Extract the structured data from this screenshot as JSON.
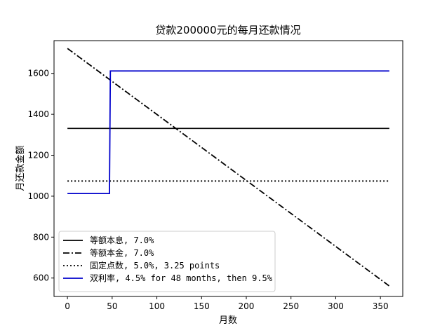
{
  "chart_data": {
    "type": "line",
    "title": "贷款200000元的每月还款情况",
    "xlabel": "月数",
    "ylabel": "月还款金额",
    "xlim": [
      -15,
      375
    ],
    "ylim": [
      510,
      1760
    ],
    "xticks": [
      0,
      50,
      100,
      150,
      200,
      250,
      300,
      350
    ],
    "yticks": [
      600,
      800,
      1000,
      1200,
      1400,
      1600
    ],
    "grid": false,
    "legend_position": "lower-left",
    "series": [
      {
        "name": "等额本息, 7.0%",
        "style": "solid",
        "color": "#000000",
        "x": [
          0,
          360
        ],
        "y": [
          1331,
          1331
        ]
      },
      {
        "name": "等额本金, 7.0%",
        "style": "dashdot",
        "color": "#000000",
        "x": [
          0,
          360
        ],
        "y": [
          1722,
          561
        ]
      },
      {
        "name": "固定点数, 5.0%, 3.25 points",
        "style": "dotted",
        "color": "#000000",
        "x": [
          0,
          360
        ],
        "y": [
          1074,
          1074
        ]
      },
      {
        "name": "双利率, 4.5% for 48 months, then 9.5%",
        "style": "solid",
        "color": "#0000cc",
        "x": [
          0,
          47,
          48,
          360
        ],
        "y": [
          1013,
          1013,
          1612,
          1612
        ]
      }
    ]
  }
}
